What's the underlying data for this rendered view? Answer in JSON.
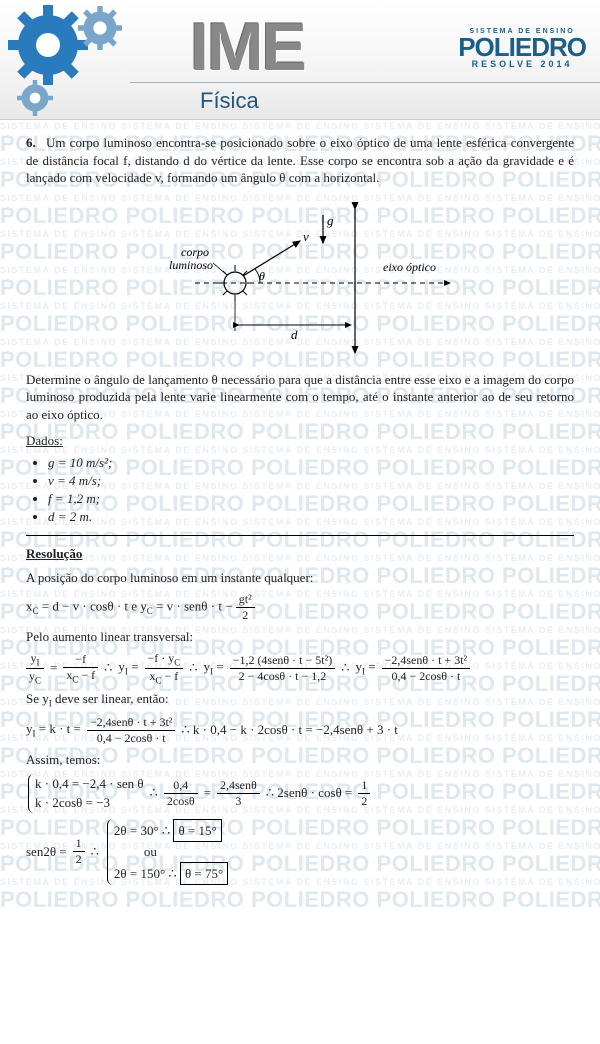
{
  "header": {
    "ime": "IME",
    "subject": "Física",
    "brand_l1": "SISTEMA DE ENSINO",
    "brand_l2": "POLIEDRO",
    "brand_l3": "RESOLVE 2014",
    "gear_color_main": "#2a7bbd",
    "gear_color_alt": "#7aa7c9"
  },
  "watermark": {
    "big": "POLIEDRO POLIEDRO POLIEDRO POLIEDRO POLIEDRO",
    "small": "SISTEMA DE ENSINO   SISTEMA DE ENSINO   SISTEMA DE ENSINO   SISTEMA DE ENSINO   SISTEMA DE ENSINO",
    "rows": 24
  },
  "question": {
    "number": "6.",
    "text": "Um corpo luminoso encontra-se posicionado sobre o eixo óptico de uma lente esférica convergente de distância focal f, distando d do vértice da lente. Esse corpo se encontra sob a ação da gravidade e é lançado com velocidade v, formando um ângulo θ com a horizontal.",
    "subtext": "Determine o ângulo de lançamento θ necessário para que a distância entre esse eixo e a imagem do corpo luminoso produzida pela lente varie linearmente com o tempo, até o instante anterior ao de seu retorno ao eixo óptico."
  },
  "figure": {
    "label_body": "corpo luminoso",
    "label_axis": "eixo óptico",
    "label_g": "g⃗",
    "label_v": "v⃗",
    "label_theta": "θ",
    "label_d": "d"
  },
  "dados": {
    "title": "Dados:",
    "items": [
      "g = 10 m/s²;",
      "v = 4 m/s;",
      "f = 1,2 m;",
      "d = 2 m."
    ]
  },
  "resolucao": {
    "title": "Resolução",
    "l1": "A posição do corpo luminoso em um instante qualquer:",
    "eq1_a": "x",
    "eq1_b": "C",
    "eq1_c": " = d − v · cosθ · t  e  y",
    "eq1_d": "C",
    "eq1_e": " = v · senθ · t − ",
    "eq1_frac_num": "gt²",
    "eq1_frac_den": "2",
    "l2": "Pelo aumento linear transversal:",
    "eq2_p1_num": "y",
    "eq2_p1_numsub": "I",
    "eq2_p1_den": "y",
    "eq2_p1_densub": "C",
    "eq2_p2_num": "−f",
    "eq2_p2_den": "x",
    "eq2_p2_densub": "C",
    "eq2_p2_den2": " − f",
    "eq2_p3_lhs": "y",
    "eq2_p3_lhssub": "I",
    "eq2_p3_num": "−f · y",
    "eq2_p3_numsub": "C",
    "eq2_p3_den": "x",
    "eq2_p3_densub": "C",
    "eq2_p3_den2": " − f",
    "eq2_p4_num": "−1,2 (4senθ · t − 5t²)",
    "eq2_p4_den": "2 − 4cosθ · t − 1,2",
    "eq2_p5_num": "−2,4senθ · t + 3t²",
    "eq2_p5_den": "0,4 − 2cosθ · t",
    "l3a": "Se  y",
    "l3b": "I",
    "l3c": "  deve ser linear, então:",
    "eq3_lhs": "y",
    "eq3_lhssub": "I",
    "eq3_mid": " = k · t = ",
    "eq3_num": "−2,4senθ · t + 3t²",
    "eq3_den": "0,4 − 2cosθ · t",
    "eq3_tail": " ∴ k · 0,4 − k · 2cosθ · t = −2,4senθ + 3 · t",
    "l4": "Assim, temos:",
    "sys1": "k · 0,4 = −2,4 · sen θ",
    "sys2": "k · 2cosθ = −3",
    "step_num": "0,4",
    "step_den": "2cosθ",
    "step2_num": "2,4senθ",
    "step2_den": "3",
    "step_tail": " ∴ 2senθ · cosθ = ",
    "half_num": "1",
    "half_den": "2",
    "final_lhs": "sen2θ = ",
    "case1a": "2θ = 30° ∴ ",
    "case1b": "θ = 15°",
    "or": "ou",
    "case2a": "2θ = 150° ∴ ",
    "case2b": "θ = 75°"
  }
}
